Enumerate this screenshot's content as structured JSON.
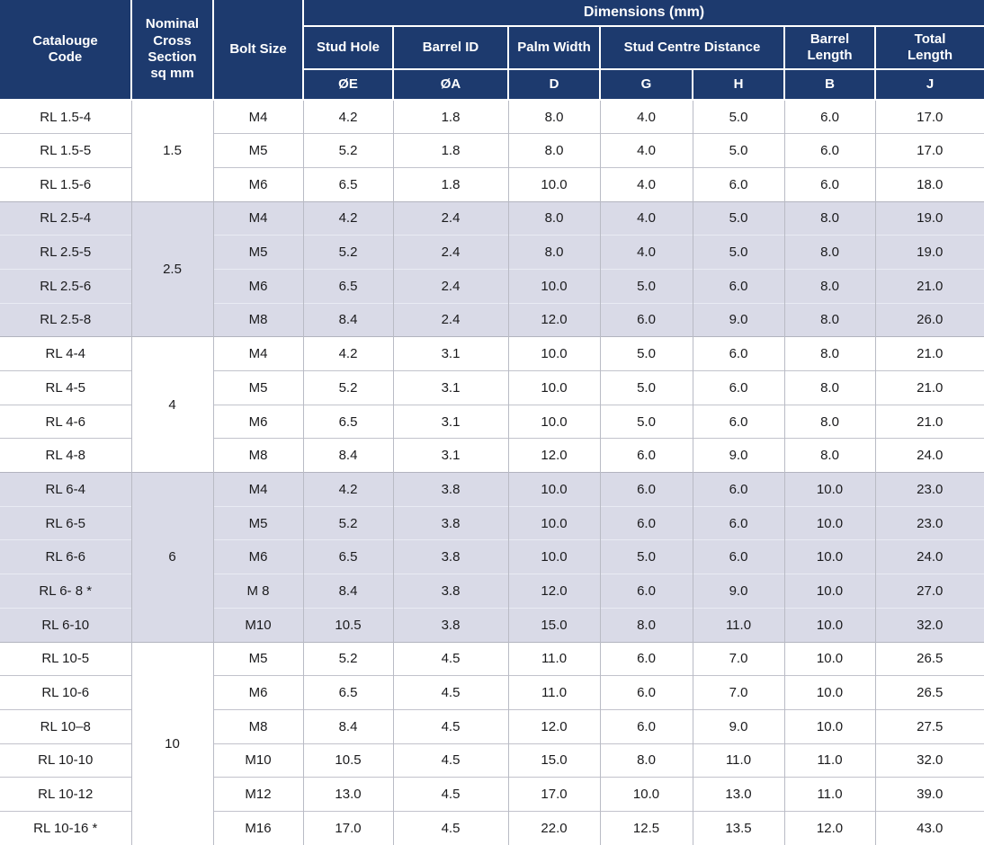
{
  "colors": {
    "header_bg": "#1d3a6e",
    "shaded_row_bg": "#d9dae7",
    "grid_line": "#b9bbc5",
    "header_text": "#ffffff",
    "text_color": "#1b1b1d"
  },
  "table": {
    "header": {
      "catalogue_code": "Catalouge\nCode",
      "nominal_cross_section": "Nominal\nCross\nSection\nsq mm",
      "bolt_size": "Bolt Size",
      "dimensions_title": "Dimensions (mm)",
      "groups": {
        "stud_hole": "Stud Hole",
        "barrel_id": "Barrel ID",
        "palm_width": "Palm Width",
        "stud_centre_distance": "Stud Centre Distance",
        "barrel_length": "Barrel\nLength",
        "total_length": "Total\nLength"
      },
      "symbols": [
        "ØE",
        "ØA",
        "D",
        "G",
        "H",
        "B",
        "J"
      ]
    },
    "sections": [
      {
        "cross_section": "1.5",
        "shaded": false,
        "rows": [
          {
            "code": "RL 1.5-4",
            "bolt": "M4",
            "values": [
              "4.2",
              "1.8",
              "8.0",
              "4.0",
              "5.0",
              "6.0",
              "17.0"
            ]
          },
          {
            "code": "RL 1.5-5",
            "bolt": "M5",
            "values": [
              "5.2",
              "1.8",
              "8.0",
              "4.0",
              "5.0",
              "6.0",
              "17.0"
            ]
          },
          {
            "code": "RL 1.5-6",
            "bolt": "M6",
            "values": [
              "6.5",
              "1.8",
              "10.0",
              "4.0",
              "6.0",
              "6.0",
              "18.0"
            ]
          }
        ]
      },
      {
        "cross_section": "2.5",
        "shaded": true,
        "rows": [
          {
            "code": "RL 2.5-4",
            "bolt": "M4",
            "values": [
              "4.2",
              "2.4",
              "8.0",
              "4.0",
              "5.0",
              "8.0",
              "19.0"
            ]
          },
          {
            "code": "RL 2.5-5",
            "bolt": "M5",
            "values": [
              "5.2",
              "2.4",
              "8.0",
              "4.0",
              "5.0",
              "8.0",
              "19.0"
            ]
          },
          {
            "code": "RL 2.5-6",
            "bolt": "M6",
            "values": [
              "6.5",
              "2.4",
              "10.0",
              "5.0",
              "6.0",
              "8.0",
              "21.0"
            ]
          },
          {
            "code": "RL 2.5-8",
            "bolt": "M8",
            "values": [
              "8.4",
              "2.4",
              "12.0",
              "6.0",
              "9.0",
              "8.0",
              "26.0"
            ]
          }
        ]
      },
      {
        "cross_section": "4",
        "shaded": false,
        "rows": [
          {
            "code": "RL 4-4",
            "bolt": "M4",
            "values": [
              "4.2",
              "3.1",
              "10.0",
              "5.0",
              "6.0",
              "8.0",
              "21.0"
            ]
          },
          {
            "code": "RL 4-5",
            "bolt": "M5",
            "values": [
              "5.2",
              "3.1",
              "10.0",
              "5.0",
              "6.0",
              "8.0",
              "21.0"
            ]
          },
          {
            "code": "RL 4-6",
            "bolt": "M6",
            "values": [
              "6.5",
              "3.1",
              "10.0",
              "5.0",
              "6.0",
              "8.0",
              "21.0"
            ]
          },
          {
            "code": "RL 4-8",
            "bolt": "M8",
            "values": [
              "8.4",
              "3.1",
              "12.0",
              "6.0",
              "9.0",
              "8.0",
              "24.0"
            ]
          }
        ]
      },
      {
        "cross_section": "6",
        "shaded": true,
        "rows": [
          {
            "code": "RL 6-4",
            "bolt": "M4",
            "values": [
              "4.2",
              "3.8",
              "10.0",
              "6.0",
              "6.0",
              "10.0",
              "23.0"
            ]
          },
          {
            "code": "RL 6-5",
            "bolt": "M5",
            "values": [
              "5.2",
              "3.8",
              "10.0",
              "6.0",
              "6.0",
              "10.0",
              "23.0"
            ]
          },
          {
            "code": "RL 6-6",
            "bolt": "M6",
            "values": [
              "6.5",
              "3.8",
              "10.0",
              "5.0",
              "6.0",
              "10.0",
              "24.0"
            ]
          },
          {
            "code": "RL 6- 8 *",
            "bolt": "M 8",
            "values": [
              "8.4",
              "3.8",
              "12.0",
              "6.0",
              "9.0",
              "10.0",
              "27.0"
            ]
          },
          {
            "code": "RL 6-10",
            "bolt": "M10",
            "values": [
              "10.5",
              "3.8",
              "15.0",
              "8.0",
              "11.0",
              "10.0",
              "32.0"
            ]
          }
        ]
      },
      {
        "cross_section": "10",
        "shaded": false,
        "rows": [
          {
            "code": "RL 10-5",
            "bolt": "M5",
            "values": [
              "5.2",
              "4.5",
              "11.0",
              "6.0",
              "7.0",
              "10.0",
              "26.5"
            ]
          },
          {
            "code": "RL 10-6",
            "bolt": "M6",
            "values": [
              "6.5",
              "4.5",
              "11.0",
              "6.0",
              "7.0",
              "10.0",
              "26.5"
            ]
          },
          {
            "code": "RL 10–8",
            "bolt": "M8",
            "values": [
              "8.4",
              "4.5",
              "12.0",
              "6.0",
              "9.0",
              "10.0",
              "27.5"
            ]
          },
          {
            "code": "RL 10-10",
            "bolt": "M10",
            "values": [
              "10.5",
              "4.5",
              "15.0",
              "8.0",
              "11.0",
              "11.0",
              "32.0"
            ]
          },
          {
            "code": "RL 10-12",
            "bolt": "M12",
            "values": [
              "13.0",
              "4.5",
              "17.0",
              "10.0",
              "13.0",
              "11.0",
              "39.0"
            ]
          },
          {
            "code": "RL 10-16 *",
            "bolt": "M16",
            "values": [
              "17.0",
              "4.5",
              "22.0",
              "12.5",
              "13.5",
              "12.0",
              "43.0"
            ]
          }
        ]
      }
    ]
  }
}
